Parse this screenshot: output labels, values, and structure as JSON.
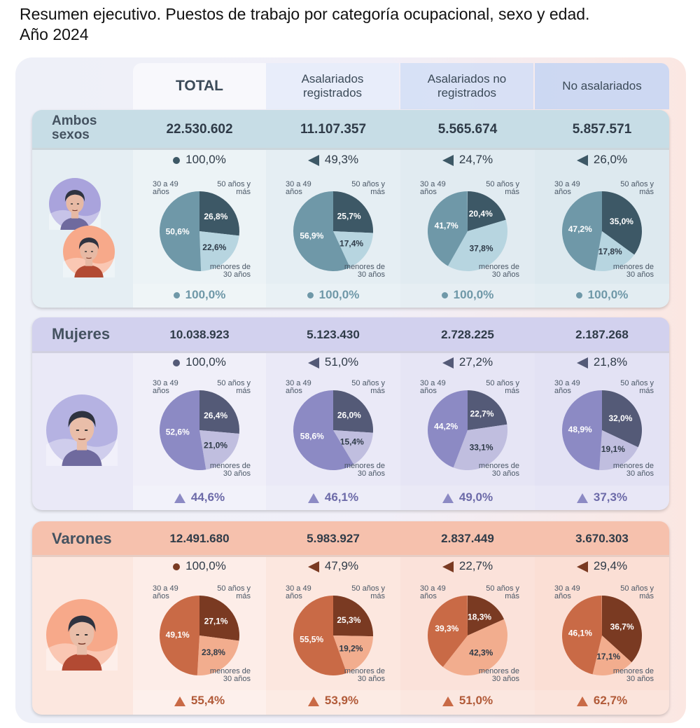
{
  "title_line1": "Resumen ejecutivo. Puestos de trabajo por categoría ocupacional, sexo y edad.",
  "title_line2": "Año 2024",
  "columns": [
    "TOTAL",
    "Asalariados registrados",
    "Asalariados no registrados",
    "No asalariados"
  ],
  "age_labels": {
    "mid": "30 a 49 años",
    "old": "50 años y más",
    "young": "menores de 30 años"
  },
  "colors": {
    "ambos": {
      "old": "#3d5866",
      "young": "#b7d5e0",
      "mid": "#6f98a8",
      "card": "#dde9ef",
      "head": "#c7dde6"
    },
    "mujeres": {
      "old": "#545a77",
      "young": "#c0bedf",
      "mid": "#8c8ac4",
      "card": "#e3e2f4",
      "head": "#d2d1ee"
    },
    "varones": {
      "old": "#7a3a22",
      "young": "#f2ad8e",
      "mid": "#c96a46",
      "card": "#fbdfd5",
      "head": "#f6c1ad"
    }
  },
  "chart_data": [
    {
      "type": "pie",
      "group": "Ambos sexos",
      "categories": [
        "TOTAL",
        "Asalariados registrados",
        "Asalariados no registrados",
        "No asalariados"
      ],
      "totals": [
        "22.530.602",
        "11.107.357",
        "5.565.674",
        "5.857.571"
      ],
      "shares": [
        "100,0%",
        "49,3%",
        "24,7%",
        "26,0%"
      ],
      "group_pct": [
        "100,0%",
        "100,0%",
        "100,0%",
        "100,0%"
      ],
      "series": [
        {
          "name": "50 años y más",
          "values": [
            26.8,
            25.7,
            20.4,
            35.0
          ],
          "labels": [
            "26,8%",
            "25,7%",
            "20,4%",
            "35,0%"
          ]
        },
        {
          "name": "menores de 30 años",
          "values": [
            22.6,
            17.4,
            37.8,
            17.8
          ],
          "labels": [
            "22,6%",
            "17,4%",
            "37,8%",
            "17,8%"
          ]
        },
        {
          "name": "30 a 49 años",
          "values": [
            50.6,
            56.9,
            41.7,
            47.2
          ],
          "labels": [
            "50,6%",
            "56,9%",
            "41,7%",
            "47,2%"
          ]
        }
      ]
    },
    {
      "type": "pie",
      "group": "Mujeres",
      "categories": [
        "TOTAL",
        "Asalariados registrados",
        "Asalariados no registrados",
        "No asalariados"
      ],
      "totals": [
        "10.038.923",
        "5.123.430",
        "2.728.225",
        "2.187.268"
      ],
      "shares": [
        "100,0%",
        "51,0%",
        "27,2%",
        "21,8%"
      ],
      "group_pct": [
        "44,6%",
        "46,1%",
        "49,0%",
        "37,3%"
      ],
      "series": [
        {
          "name": "50 años y más",
          "values": [
            26.4,
            26.0,
            22.7,
            32.0
          ],
          "labels": [
            "26,4%",
            "26,0%",
            "22,7%",
            "32,0%"
          ]
        },
        {
          "name": "menores de 30 años",
          "values": [
            21.0,
            15.4,
            33.1,
            19.1
          ],
          "labels": [
            "21,0%",
            "15,4%",
            "33,1%",
            "19,1%"
          ]
        },
        {
          "name": "30 a 49 años",
          "values": [
            52.6,
            58.6,
            44.2,
            48.9
          ],
          "labels": [
            "52,6%",
            "58,6%",
            "44,2%",
            "48,9%"
          ]
        }
      ]
    },
    {
      "type": "pie",
      "group": "Varones",
      "categories": [
        "TOTAL",
        "Asalariados registrados",
        "Asalariados no registrados",
        "No asalariados"
      ],
      "totals": [
        "12.491.680",
        "5.983.927",
        "2.837.449",
        "3.670.303"
      ],
      "shares": [
        "100,0%",
        "47,9%",
        "22,7%",
        "29,4%"
      ],
      "group_pct": [
        "55,4%",
        "53,9%",
        "51,0%",
        "62,7%"
      ],
      "series": [
        {
          "name": "50 años y más",
          "values": [
            27.1,
            25.3,
            18.3,
            36.7
          ],
          "labels": [
            "27,1%",
            "25,3%",
            "18,3%",
            "36,7%"
          ]
        },
        {
          "name": "menores de 30 años",
          "values": [
            23.8,
            19.2,
            42.3,
            17.1
          ],
          "labels": [
            "23,8%",
            "19,2%",
            "42,3%",
            "17,1%"
          ]
        },
        {
          "name": "30 a 49 años",
          "values": [
            49.1,
            55.5,
            39.3,
            46.1
          ],
          "labels": [
            "49,1%",
            "55,5%",
            "39,3%",
            "46,1%"
          ]
        }
      ]
    }
  ]
}
